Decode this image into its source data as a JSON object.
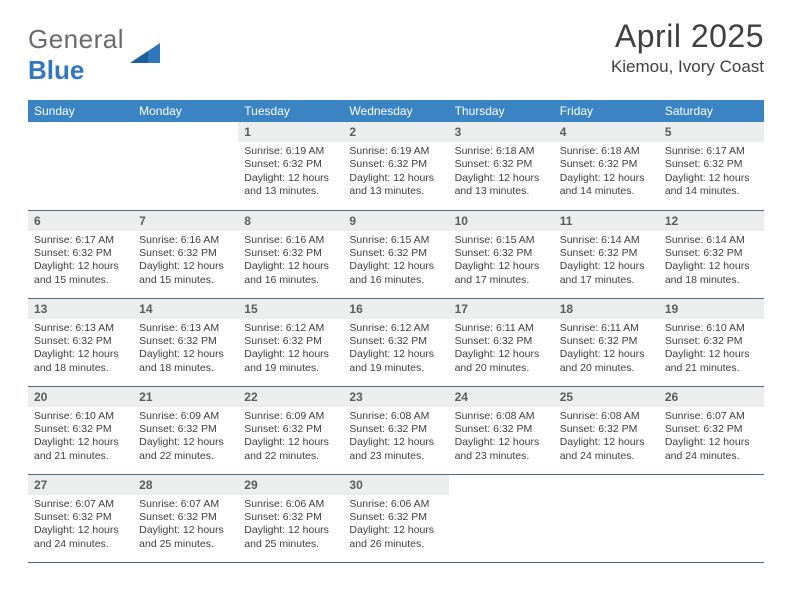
{
  "brand": {
    "part1": "General",
    "part2": "Blue"
  },
  "title": "April 2025",
  "location": "Kiemou, Ivory Coast",
  "colors": {
    "header_bg": "#3b84c4",
    "header_text": "#ffffff",
    "daynum_bg": "#eceded",
    "cell_border": "#4a6a88",
    "brand_gray": "#6b6b6b",
    "brand_blue": "#2f78bd",
    "text_color": "#3d3d3d"
  },
  "typography": {
    "title_fontsize": 32,
    "location_fontsize": 17,
    "weekday_fontsize": 12,
    "daynum_fontsize": 12,
    "cell_fontsize": 10.5
  },
  "weekdays": [
    "Sunday",
    "Monday",
    "Tuesday",
    "Wednesday",
    "Thursday",
    "Friday",
    "Saturday"
  ],
  "weeks": [
    [
      null,
      null,
      {
        "n": "1",
        "sunrise": "Sunrise: 6:19 AM",
        "sunset": "Sunset: 6:32 PM",
        "day": "Daylight: 12 hours and 13 minutes."
      },
      {
        "n": "2",
        "sunrise": "Sunrise: 6:19 AM",
        "sunset": "Sunset: 6:32 PM",
        "day": "Daylight: 12 hours and 13 minutes."
      },
      {
        "n": "3",
        "sunrise": "Sunrise: 6:18 AM",
        "sunset": "Sunset: 6:32 PM",
        "day": "Daylight: 12 hours and 13 minutes."
      },
      {
        "n": "4",
        "sunrise": "Sunrise: 6:18 AM",
        "sunset": "Sunset: 6:32 PM",
        "day": "Daylight: 12 hours and 14 minutes."
      },
      {
        "n": "5",
        "sunrise": "Sunrise: 6:17 AM",
        "sunset": "Sunset: 6:32 PM",
        "day": "Daylight: 12 hours and 14 minutes."
      }
    ],
    [
      {
        "n": "6",
        "sunrise": "Sunrise: 6:17 AM",
        "sunset": "Sunset: 6:32 PM",
        "day": "Daylight: 12 hours and 15 minutes."
      },
      {
        "n": "7",
        "sunrise": "Sunrise: 6:16 AM",
        "sunset": "Sunset: 6:32 PM",
        "day": "Daylight: 12 hours and 15 minutes."
      },
      {
        "n": "8",
        "sunrise": "Sunrise: 6:16 AM",
        "sunset": "Sunset: 6:32 PM",
        "day": "Daylight: 12 hours and 16 minutes."
      },
      {
        "n": "9",
        "sunrise": "Sunrise: 6:15 AM",
        "sunset": "Sunset: 6:32 PM",
        "day": "Daylight: 12 hours and 16 minutes."
      },
      {
        "n": "10",
        "sunrise": "Sunrise: 6:15 AM",
        "sunset": "Sunset: 6:32 PM",
        "day": "Daylight: 12 hours and 17 minutes."
      },
      {
        "n": "11",
        "sunrise": "Sunrise: 6:14 AM",
        "sunset": "Sunset: 6:32 PM",
        "day": "Daylight: 12 hours and 17 minutes."
      },
      {
        "n": "12",
        "sunrise": "Sunrise: 6:14 AM",
        "sunset": "Sunset: 6:32 PM",
        "day": "Daylight: 12 hours and 18 minutes."
      }
    ],
    [
      {
        "n": "13",
        "sunrise": "Sunrise: 6:13 AM",
        "sunset": "Sunset: 6:32 PM",
        "day": "Daylight: 12 hours and 18 minutes."
      },
      {
        "n": "14",
        "sunrise": "Sunrise: 6:13 AM",
        "sunset": "Sunset: 6:32 PM",
        "day": "Daylight: 12 hours and 18 minutes."
      },
      {
        "n": "15",
        "sunrise": "Sunrise: 6:12 AM",
        "sunset": "Sunset: 6:32 PM",
        "day": "Daylight: 12 hours and 19 minutes."
      },
      {
        "n": "16",
        "sunrise": "Sunrise: 6:12 AM",
        "sunset": "Sunset: 6:32 PM",
        "day": "Daylight: 12 hours and 19 minutes."
      },
      {
        "n": "17",
        "sunrise": "Sunrise: 6:11 AM",
        "sunset": "Sunset: 6:32 PM",
        "day": "Daylight: 12 hours and 20 minutes."
      },
      {
        "n": "18",
        "sunrise": "Sunrise: 6:11 AM",
        "sunset": "Sunset: 6:32 PM",
        "day": "Daylight: 12 hours and 20 minutes."
      },
      {
        "n": "19",
        "sunrise": "Sunrise: 6:10 AM",
        "sunset": "Sunset: 6:32 PM",
        "day": "Daylight: 12 hours and 21 minutes."
      }
    ],
    [
      {
        "n": "20",
        "sunrise": "Sunrise: 6:10 AM",
        "sunset": "Sunset: 6:32 PM",
        "day": "Daylight: 12 hours and 21 minutes."
      },
      {
        "n": "21",
        "sunrise": "Sunrise: 6:09 AM",
        "sunset": "Sunset: 6:32 PM",
        "day": "Daylight: 12 hours and 22 minutes."
      },
      {
        "n": "22",
        "sunrise": "Sunrise: 6:09 AM",
        "sunset": "Sunset: 6:32 PM",
        "day": "Daylight: 12 hours and 22 minutes."
      },
      {
        "n": "23",
        "sunrise": "Sunrise: 6:08 AM",
        "sunset": "Sunset: 6:32 PM",
        "day": "Daylight: 12 hours and 23 minutes."
      },
      {
        "n": "24",
        "sunrise": "Sunrise: 6:08 AM",
        "sunset": "Sunset: 6:32 PM",
        "day": "Daylight: 12 hours and 23 minutes."
      },
      {
        "n": "25",
        "sunrise": "Sunrise: 6:08 AM",
        "sunset": "Sunset: 6:32 PM",
        "day": "Daylight: 12 hours and 24 minutes."
      },
      {
        "n": "26",
        "sunrise": "Sunrise: 6:07 AM",
        "sunset": "Sunset: 6:32 PM",
        "day": "Daylight: 12 hours and 24 minutes."
      }
    ],
    [
      {
        "n": "27",
        "sunrise": "Sunrise: 6:07 AM",
        "sunset": "Sunset: 6:32 PM",
        "day": "Daylight: 12 hours and 24 minutes."
      },
      {
        "n": "28",
        "sunrise": "Sunrise: 6:07 AM",
        "sunset": "Sunset: 6:32 PM",
        "day": "Daylight: 12 hours and 25 minutes."
      },
      {
        "n": "29",
        "sunrise": "Sunrise: 6:06 AM",
        "sunset": "Sunset: 6:32 PM",
        "day": "Daylight: 12 hours and 25 minutes."
      },
      {
        "n": "30",
        "sunrise": "Sunrise: 6:06 AM",
        "sunset": "Sunset: 6:32 PM",
        "day": "Daylight: 12 hours and 26 minutes."
      },
      null,
      null,
      null
    ]
  ]
}
